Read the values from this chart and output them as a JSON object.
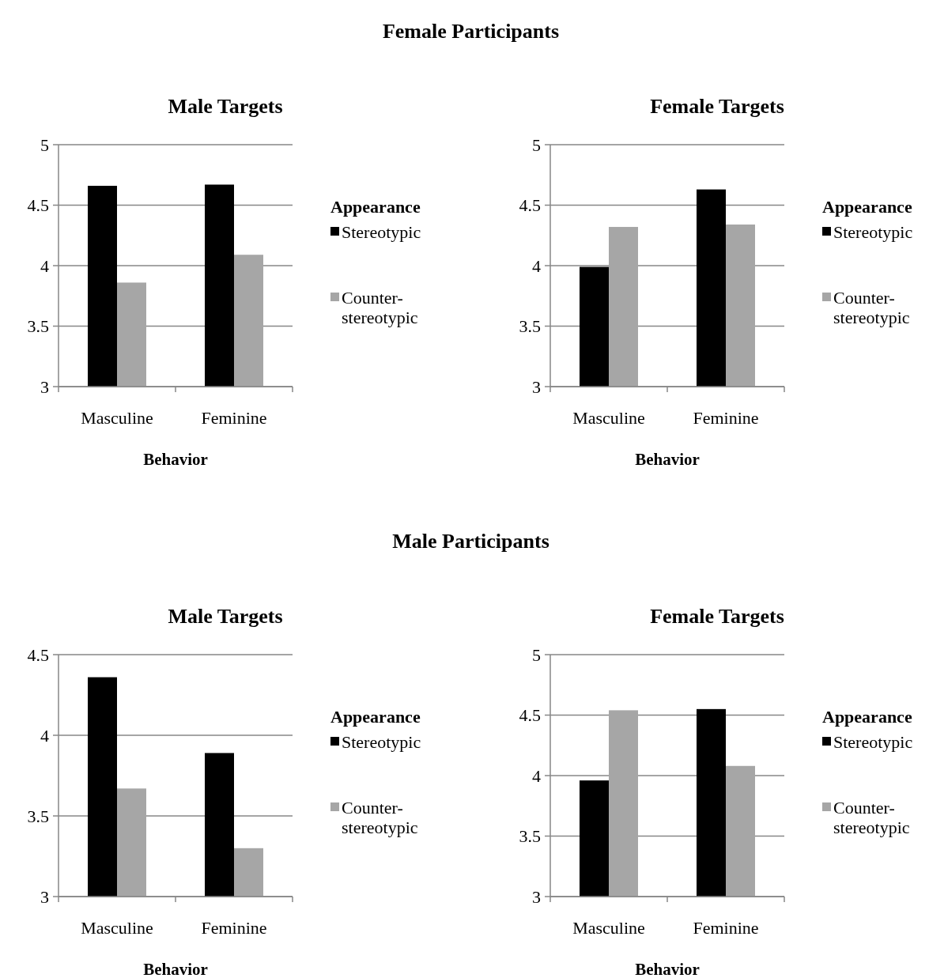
{
  "chart_data": [
    {
      "type": "bar",
      "title": "Male Targets",
      "annotations": [
        "Female Participants"
      ],
      "xlabel": "Behavior",
      "legend_title": "Appearance",
      "legend": "right",
      "grid": "y",
      "categories": [
        "Masculine",
        "Feminine"
      ],
      "ylim": [
        3,
        5
      ],
      "yticks": [
        3,
        3.5,
        4,
        4.5,
        5
      ],
      "series": [
        {
          "name": "Stereotypic",
          "color": "#000000",
          "values": [
            4.66,
            4.67
          ]
        },
        {
          "name": "Counter-stereotypic",
          "color": "#a6a6a6",
          "values": [
            3.86,
            4.09
          ]
        }
      ]
    },
    {
      "type": "bar",
      "title": "Female Targets",
      "xlabel": "Behavior",
      "legend_title": "Appearance",
      "legend": "right",
      "grid": "y",
      "categories": [
        "Masculine",
        "Feminine"
      ],
      "ylim": [
        3,
        5
      ],
      "yticks": [
        3,
        3.5,
        4,
        4.5,
        5
      ],
      "series": [
        {
          "name": "Stereotypic",
          "color": "#000000",
          "values": [
            3.99,
            4.63
          ]
        },
        {
          "name": "Counter-stereotypic",
          "color": "#a6a6a6",
          "values": [
            4.32,
            4.34
          ]
        }
      ]
    },
    {
      "type": "bar",
      "title": "Male Targets",
      "annotations": [
        "Male Participants"
      ],
      "xlabel": "Behavior",
      "legend_title": "Appearance",
      "legend": "right",
      "grid": "y",
      "categories": [
        "Masculine",
        "Feminine"
      ],
      "ylim": [
        3,
        4.5
      ],
      "yticks": [
        3,
        3.5,
        4,
        4.5
      ],
      "series": [
        {
          "name": "Stereotypic",
          "color": "#000000",
          "values": [
            4.36,
            3.89
          ]
        },
        {
          "name": "Counter-stereotypic",
          "color": "#a6a6a6",
          "values": [
            3.67,
            3.3
          ]
        }
      ]
    },
    {
      "type": "bar",
      "title": "Female Targets",
      "xlabel": "Behavior",
      "legend_title": "Appearance",
      "legend": "right",
      "grid": "y",
      "categories": [
        "Masculine",
        "Feminine"
      ],
      "ylim": [
        3,
        5
      ],
      "yticks": [
        3,
        3.5,
        4,
        4.5,
        5
      ],
      "series": [
        {
          "name": "Stereotypic",
          "color": "#000000",
          "values": [
            3.96,
            4.55
          ]
        },
        {
          "name": "Counter-stereotypic",
          "color": "#a6a6a6",
          "values": [
            4.54,
            4.08
          ]
        }
      ]
    }
  ]
}
